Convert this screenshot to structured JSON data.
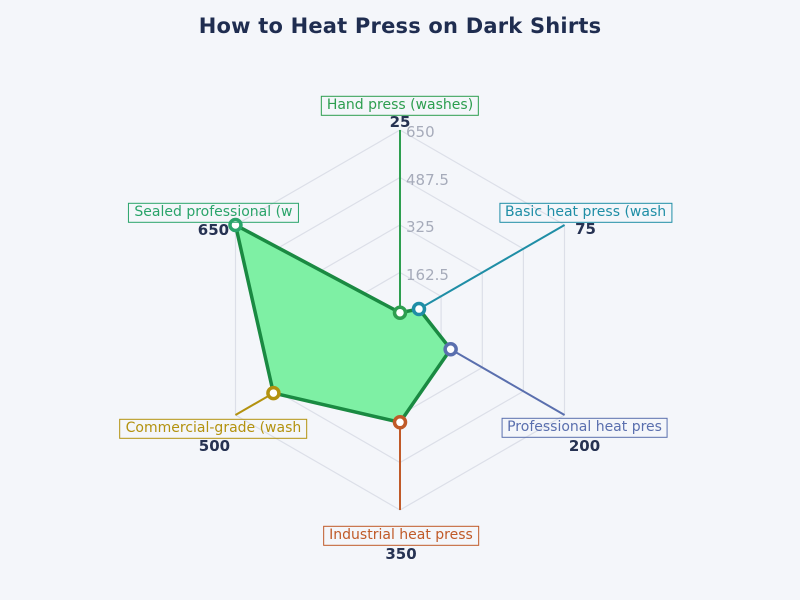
{
  "chart_data": {
    "type": "radar",
    "title": "How to Heat Press on Dark Shirts",
    "categories": [
      "Hand press (washes)",
      "Basic heat press (wash",
      "Professional heat pres",
      "Industrial heat press",
      "Commercial-grade (wash",
      "Sealed professional (w"
    ],
    "values": [
      25,
      75,
      200,
      350,
      500,
      650
    ],
    "value_labels": [
      "25",
      "75",
      "200",
      "350",
      "500",
      "650"
    ],
    "axis_colors": [
      "#2d9e4f",
      "#1f8ea6",
      "#5a6fae",
      "#c05a28",
      "#b3920f",
      "#2aa46a"
    ],
    "radial_ticks": [
      "162.5",
      "325",
      "487.5",
      "650"
    ],
    "rlim": [
      0,
      650
    ],
    "grid": "hexagonal rings on",
    "legend": "none",
    "series_fill": "#7ef0a4",
    "series_stroke": "#1a8a42"
  },
  "style": {
    "background": "#f4f6fa",
    "title_color": "#1f2d50",
    "value_label_color": "#263252",
    "tick_label_color": "#a6abba",
    "grid_color": "#dcdfe8",
    "marker_fill": "#ffffff"
  }
}
